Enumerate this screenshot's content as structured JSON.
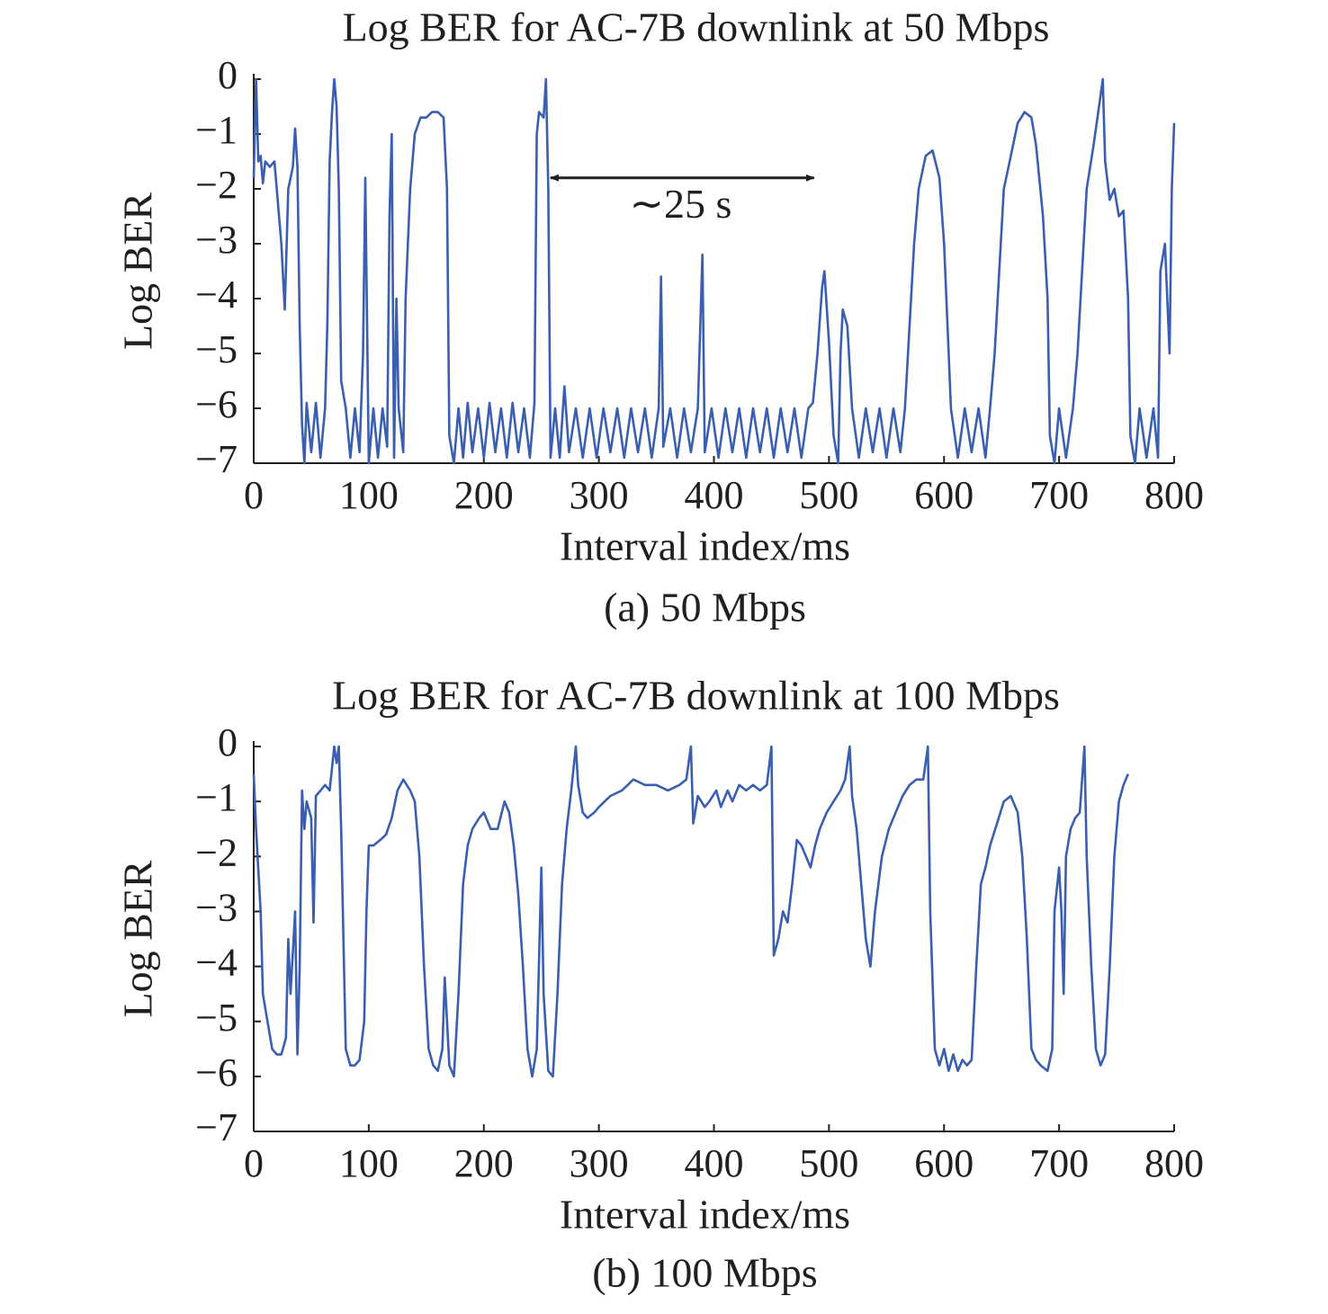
{
  "chart_data": [
    {
      "type": "line",
      "title": "Log BER for AC-7B downlink at 50 Mbps",
      "xlabel": "Interval index/ms",
      "ylabel": "Log BER",
      "caption": "(a) 50 Mbps",
      "color": "#3a5fb0",
      "xlim": [
        0,
        800
      ],
      "xticks": [
        0,
        100,
        200,
        300,
        400,
        500,
        600,
        700,
        800
      ],
      "ylim": [
        -7,
        0
      ],
      "yticks": [
        0,
        {
          "value": -1,
          "label": "−1"
        },
        {
          "value": -2,
          "label": "−2"
        },
        {
          "value": -3,
          "label": "−3"
        },
        {
          "value": -4,
          "label": "−4"
        },
        {
          "value": -5,
          "label": "−5"
        },
        {
          "value": -6,
          "label": "−6"
        },
        {
          "value": -7,
          "label": "−7"
        }
      ],
      "annotation": {
        "text": "∼25 s",
        "x": 371,
        "y": -2.35,
        "arrow_x": [
          258,
          487
        ],
        "arrow_y": -1.8
      },
      "x": [
        0,
        2,
        4,
        6,
        8,
        10,
        14,
        18,
        20,
        24,
        27,
        30,
        34,
        36,
        38,
        40,
        42,
        44,
        46,
        50,
        54,
        58,
        62,
        64,
        66,
        68,
        70,
        72,
        74,
        76,
        80,
        84,
        88,
        92,
        95,
        97,
        100,
        104,
        108,
        112,
        116,
        118,
        120,
        122,
        124,
        126,
        130,
        132,
        136,
        140,
        145,
        150,
        155,
        160,
        165,
        168,
        170,
        174,
        178,
        182,
        186,
        190,
        195,
        200,
        205,
        210,
        215,
        220,
        225,
        230,
        235,
        240,
        244,
        246,
        248,
        252,
        254,
        256,
        258,
        262,
        266,
        270,
        274,
        280,
        286,
        292,
        298,
        304,
        310,
        316,
        322,
        328,
        334,
        340,
        346,
        352,
        354,
        356,
        362,
        368,
        374,
        380,
        386,
        390,
        392,
        398,
        404,
        410,
        416,
        422,
        428,
        434,
        440,
        446,
        452,
        458,
        464,
        470,
        476,
        482,
        486,
        490,
        494,
        496,
        500,
        504,
        508,
        510,
        512,
        516,
        520,
        526,
        532,
        538,
        544,
        550,
        556,
        562,
        566,
        570,
        574,
        578,
        584,
        590,
        596,
        600,
        604,
        606,
        612,
        618,
        624,
        630,
        636,
        640,
        644,
        648,
        652,
        656,
        660,
        664,
        670,
        676,
        680,
        686,
        690,
        692,
        696,
        700,
        706,
        712,
        716,
        720,
        724,
        730,
        736,
        738,
        740,
        744,
        748,
        752,
        756,
        760,
        762,
        766,
        770,
        776,
        782,
        786,
        788,
        792,
        796,
        798,
        800
      ],
      "values": [
        -1.8,
        0,
        -1.5,
        -1.4,
        -1.9,
        -1.5,
        -1.6,
        -1.5,
        -2.0,
        -3.0,
        -4.2,
        -2.0,
        -1.6,
        -0.9,
        -1.6,
        -4.5,
        -6.3,
        -7,
        -5.9,
        -6.8,
        -5.9,
        -6.9,
        -6.0,
        -4.5,
        -1.5,
        -0.6,
        0,
        -0.5,
        -2.0,
        -5.5,
        -6.0,
        -6.9,
        -6.0,
        -6.8,
        -5.0,
        -1.8,
        -7,
        -6.0,
        -6.9,
        -6.0,
        -6.7,
        -2.5,
        -1.0,
        -6.9,
        -4.0,
        -6.0,
        -6.8,
        -4.0,
        -2.0,
        -1.0,
        -0.7,
        -0.7,
        -0.6,
        -0.6,
        -0.7,
        -2.0,
        -6.5,
        -7,
        -6.0,
        -6.9,
        -5.9,
        -6.8,
        -6.0,
        -6.9,
        -5.9,
        -6.8,
        -6.0,
        -6.9,
        -5.9,
        -6.8,
        -6.0,
        -6.9,
        -5.9,
        -1.0,
        -0.6,
        -0.7,
        0,
        -2.0,
        -6.9,
        -6.0,
        -6.9,
        -5.6,
        -6.8,
        -6.0,
        -6.9,
        -6.0,
        -6.9,
        -6.0,
        -6.8,
        -6.0,
        -6.9,
        -6.0,
        -6.8,
        -6.0,
        -6.9,
        -6.0,
        -3.6,
        -6.7,
        -6.0,
        -6.9,
        -6.0,
        -6.8,
        -6.0,
        -3.2,
        -6.8,
        -6.0,
        -6.9,
        -6.0,
        -6.8,
        -6.0,
        -6.9,
        -6.0,
        -6.8,
        -6.0,
        -6.9,
        -6.0,
        -6.8,
        -6.0,
        -6.9,
        -6.0,
        -5.9,
        -5.0,
        -3.8,
        -3.5,
        -4.8,
        -6.5,
        -7,
        -5.0,
        -4.2,
        -4.5,
        -6.0,
        -6.9,
        -6.0,
        -6.8,
        -6.0,
        -6.9,
        -6.0,
        -6.8,
        -6.0,
        -4.5,
        -3.0,
        -2.0,
        -1.4,
        -1.3,
        -1.8,
        -3.0,
        -5.0,
        -6.0,
        -6.9,
        -6.0,
        -6.8,
        -6.0,
        -6.9,
        -6.0,
        -5.0,
        -3.5,
        -2.0,
        -1.6,
        -1.2,
        -0.8,
        -0.6,
        -0.7,
        -1.2,
        -2.5,
        -4.0,
        -6.5,
        -7,
        -6.0,
        -6.9,
        -6.0,
        -5.0,
        -3.5,
        -2.0,
        -1.2,
        -0.3,
        0,
        -1.5,
        -2.2,
        -2.0,
        -2.5,
        -2.4,
        -4.0,
        -6.5,
        -7,
        -6.0,
        -6.9,
        -6.0,
        -6.9,
        -3.5,
        -3.0,
        -5.0,
        -2.0,
        -0.8
      ]
    },
    {
      "type": "line",
      "title": "Log BER for AC-7B downlink at 100 Mbps",
      "xlabel": "Interval index/ms",
      "ylabel": "Log BER",
      "caption": "(b) 100 Mbps",
      "color": "#3a5fb0",
      "xlim": [
        0,
        800
      ],
      "xticks": [
        0,
        100,
        200,
        300,
        400,
        500,
        600,
        700,
        800
      ],
      "ylim": [
        -7,
        0
      ],
      "yticks": [
        0,
        {
          "value": -1,
          "label": "−1"
        },
        {
          "value": -2,
          "label": "−2"
        },
        {
          "value": -3,
          "label": "−3"
        },
        {
          "value": -4,
          "label": "−4"
        },
        {
          "value": -5,
          "label": "−5"
        },
        {
          "value": -6,
          "label": "−6"
        },
        {
          "value": -7,
          "label": "−7"
        }
      ],
      "x": [
        0,
        2,
        6,
        8,
        12,
        16,
        20,
        24,
        28,
        30,
        32,
        36,
        38,
        40,
        42,
        44,
        46,
        50,
        52,
        54,
        58,
        62,
        66,
        70,
        72,
        74,
        76,
        78,
        80,
        84,
        88,
        92,
        96,
        98,
        100,
        104,
        110,
        115,
        120,
        125,
        130,
        136,
        140,
        144,
        148,
        152,
        156,
        160,
        164,
        166,
        170,
        174,
        178,
        182,
        186,
        190,
        196,
        200,
        206,
        212,
        218,
        222,
        226,
        230,
        234,
        238,
        242,
        246,
        250,
        252,
        256,
        260,
        264,
        268,
        272,
        276,
        280,
        282,
        286,
        290,
        296,
        300,
        310,
        320,
        330,
        340,
        350,
        360,
        370,
        376,
        380,
        382,
        386,
        392,
        396,
        402,
        406,
        412,
        416,
        422,
        428,
        434,
        440,
        446,
        450,
        452,
        456,
        460,
        464,
        468,
        472,
        476,
        480,
        484,
        488,
        492,
        498,
        504,
        510,
        514,
        518,
        520,
        524,
        528,
        532,
        536,
        540,
        546,
        552,
        558,
        564,
        570,
        576,
        582,
        586,
        588,
        592,
        596,
        600,
        604,
        608,
        612,
        616,
        620,
        624,
        628,
        632,
        636,
        640,
        646,
        652,
        658,
        664,
        668,
        672,
        676,
        680,
        684,
        690,
        694,
        696,
        700,
        702,
        704,
        706,
        710,
        714,
        718,
        722,
        724,
        728,
        732,
        736,
        740,
        744,
        748,
        752,
        756,
        760
      ],
      "values": [
        -0.5,
        -1.5,
        -3.0,
        -4.5,
        -5.0,
        -5.5,
        -5.6,
        -5.6,
        -5.3,
        -3.5,
        -4.5,
        -3.0,
        -5.6,
        -4.0,
        -0.8,
        -1.5,
        -1.0,
        -1.3,
        -3.2,
        -0.9,
        -0.8,
        -0.7,
        -0.8,
        0,
        -0.3,
        0,
        -1.5,
        -3.5,
        -5.5,
        -5.8,
        -5.8,
        -5.7,
        -5.0,
        -3.0,
        -1.8,
        -1.8,
        -1.7,
        -1.6,
        -1.3,
        -0.8,
        -0.6,
        -0.8,
        -1.0,
        -2.0,
        -4.0,
        -5.5,
        -5.8,
        -5.9,
        -5.5,
        -4.2,
        -5.8,
        -6.0,
        -4.5,
        -2.5,
        -1.8,
        -1.5,
        -1.3,
        -1.2,
        -1.5,
        -1.5,
        -1.0,
        -1.2,
        -1.8,
        -2.7,
        -4.0,
        -5.5,
        -6.0,
        -5.5,
        -2.2,
        -4.5,
        -5.9,
        -6.0,
        -4.5,
        -2.5,
        -1.5,
        -0.8,
        0,
        -0.7,
        -1.2,
        -1.3,
        -1.2,
        -1.1,
        -0.9,
        -0.8,
        -0.6,
        -0.7,
        -0.7,
        -0.8,
        -0.7,
        -0.6,
        0,
        -1.4,
        -0.9,
        -1.1,
        -1.0,
        -0.8,
        -1.1,
        -0.8,
        -1.0,
        -0.7,
        -0.8,
        -0.7,
        -0.8,
        -0.7,
        0,
        -3.8,
        -3.5,
        -3.0,
        -3.2,
        -2.5,
        -1.7,
        -1.8,
        -2.0,
        -2.2,
        -1.8,
        -1.5,
        -1.2,
        -1.0,
        -0.8,
        -0.6,
        0,
        -0.9,
        -1.5,
        -2.5,
        -3.5,
        -4.0,
        -3.0,
        -2.0,
        -1.5,
        -1.2,
        -0.9,
        -0.7,
        -0.6,
        -0.6,
        0,
        -3.0,
        -5.5,
        -5.8,
        -5.5,
        -5.9,
        -5.6,
        -5.9,
        -5.7,
        -5.8,
        -5.7,
        -4.0,
        -2.5,
        -2.2,
        -1.8,
        -1.4,
        -1.0,
        -0.9,
        -1.2,
        -2.0,
        -3.5,
        -5.5,
        -5.7,
        -5.8,
        -5.9,
        -5.5,
        -3.0,
        -2.2,
        -3.0,
        -4.5,
        -2.0,
        -1.5,
        -1.3,
        -1.2,
        0,
        -2.0,
        -4.0,
        -5.5,
        -5.8,
        -5.6,
        -4.0,
        -2.0,
        -1.0,
        -0.7,
        -0.5
      ]
    }
  ]
}
